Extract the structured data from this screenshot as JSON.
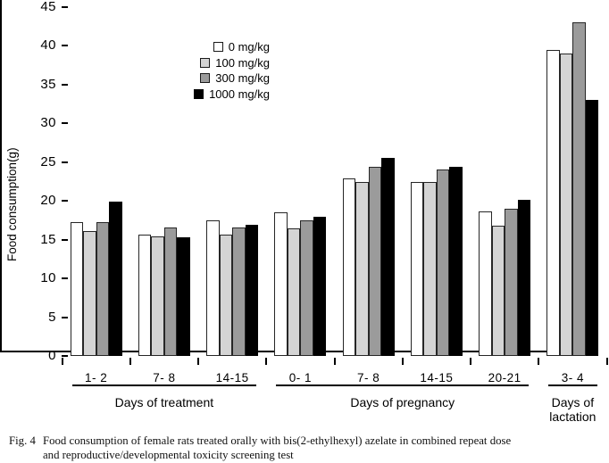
{
  "figure": {
    "ylabel": "Food consumption(g)",
    "caption": {
      "fig_label": "Fig. 4",
      "line1": "Food consumption of female rats treated orally with bis(2-ethylhexyl) azelate in combined repeat dose",
      "line2": "and reproductive/developmental toxicity screening test"
    }
  },
  "chart_data": {
    "type": "bar",
    "title": "",
    "xlabel": "",
    "ylabel": "Food consumption(g)",
    "ylim": [
      0,
      45
    ],
    "y_ticks": [
      0,
      5,
      10,
      15,
      20,
      25,
      30,
      35,
      40,
      45
    ],
    "grid": false,
    "legend_position": "upper-left-inside",
    "categories": [
      "1- 2",
      "7- 8",
      "14-15",
      "0- 1",
      "7- 8",
      "14-15",
      "20-21",
      "3- 4"
    ],
    "series": [
      {
        "name": "0 mg/kg",
        "color": "#ffffff",
        "values": [
          17.3,
          15.7,
          17.5,
          18.5,
          22.9,
          22.5,
          18.7,
          39.5
        ]
      },
      {
        "name": "100 mg/kg",
        "color": "#d4d4d4",
        "values": [
          16.1,
          15.4,
          15.6,
          16.5,
          22.4,
          22.4,
          16.8,
          39.0
        ]
      },
      {
        "name": "300 mg/kg",
        "color": "#9b9b9b",
        "values": [
          17.3,
          16.6,
          16.6,
          17.5,
          24.4,
          24.0,
          19.0,
          43.0
        ]
      },
      {
        "name": "1000 mg/kg",
        "color": "#000000",
        "values": [
          19.9,
          15.3,
          16.9,
          18.0,
          25.6,
          24.4,
          20.1,
          33.0
        ]
      }
    ],
    "sections": [
      {
        "label_lines": [
          "Days of treatment"
        ],
        "start": 0,
        "end": 2
      },
      {
        "label_lines": [
          "Days of pregnancy"
        ],
        "start": 3,
        "end": 6
      },
      {
        "label_lines": [
          "Days of",
          "lactation"
        ],
        "start": 7,
        "end": 7
      }
    ],
    "bar_border_color": "#262626",
    "axis_color": "#000000"
  }
}
